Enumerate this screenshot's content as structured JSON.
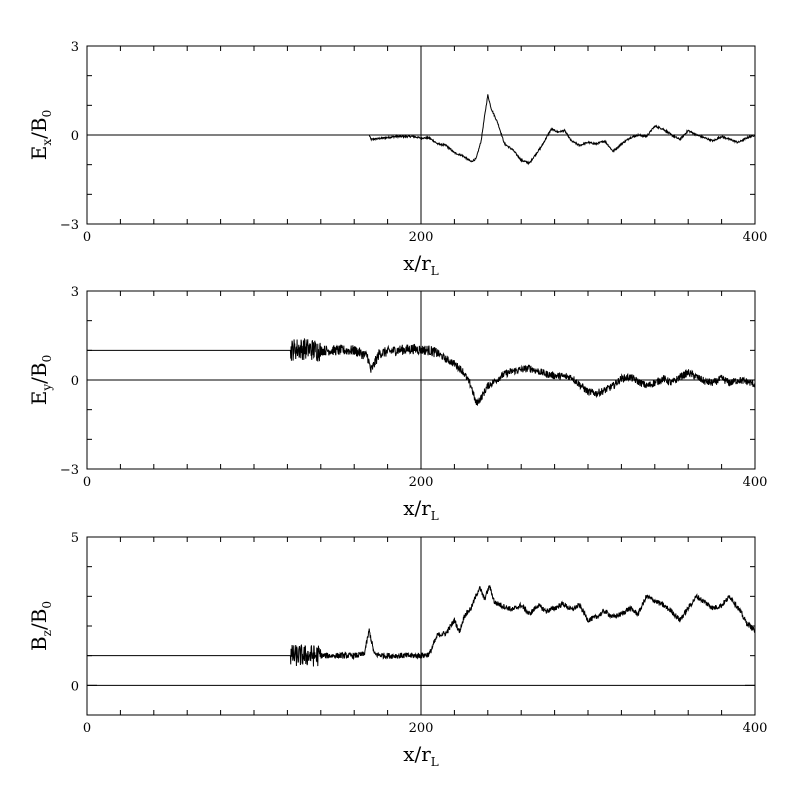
{
  "chart_data": [
    {
      "type": "line",
      "title": "",
      "ylabel": {
        "main": "E",
        "sub": "x",
        "tail": "/B",
        "tail_sub": "0"
      },
      "xlabel": {
        "main": "x/r",
        "sub": "L"
      },
      "xlim": [
        0,
        400
      ],
      "ylim": [
        -3,
        3
      ],
      "xticks": [
        0,
        200,
        400
      ],
      "yticks": [
        -3,
        0,
        3
      ],
      "x_minor_step": 20,
      "y_minor_step": 1,
      "reference_lines": {
        "vertical_x": 200,
        "horizontal_y": 0
      },
      "series": [
        {
          "x": [
            169,
            170,
            175,
            185,
            195,
            200,
            205,
            210,
            215,
            220,
            225,
            230,
            233,
            236,
            238,
            240,
            242,
            246,
            250,
            255,
            260,
            265,
            268,
            272,
            278,
            282,
            286,
            290,
            295,
            300,
            305,
            310,
            315,
            320,
            325,
            330,
            335,
            340,
            345,
            350,
            355,
            360,
            365,
            370,
            375,
            380,
            385,
            390,
            395,
            400
          ],
          "y": [
            0.0,
            -0.15,
            -0.12,
            -0.05,
            -0.05,
            -0.1,
            -0.1,
            -0.3,
            -0.35,
            -0.6,
            -0.7,
            -0.9,
            -0.8,
            -0.2,
            0.6,
            1.35,
            0.9,
            0.4,
            -0.3,
            -0.5,
            -0.85,
            -0.95,
            -0.7,
            -0.4,
            0.2,
            0.1,
            0.15,
            -0.2,
            -0.35,
            -0.25,
            -0.3,
            -0.2,
            -0.55,
            -0.3,
            -0.1,
            0.0,
            -0.05,
            0.3,
            0.2,
            0.0,
            -0.15,
            0.15,
            0.0,
            -0.1,
            -0.2,
            -0.05,
            -0.15,
            -0.25,
            -0.1,
            0.0
          ]
        }
      ]
    },
    {
      "type": "line",
      "title": "",
      "ylabel": {
        "main": "E",
        "sub": "y",
        "tail": "/B",
        "tail_sub": "0"
      },
      "xlabel": {
        "main": "x/r",
        "sub": "L"
      },
      "xlim": [
        0,
        400
      ],
      "ylim": [
        -3,
        3
      ],
      "xticks": [
        0,
        200,
        400
      ],
      "yticks": [
        -3,
        0,
        3
      ],
      "x_minor_step": 20,
      "y_minor_step": 1,
      "reference_lines": {
        "vertical_x": 200,
        "horizontal_y": 0
      },
      "series": [
        {
          "x": [
            0,
            122,
            125,
            130,
            140,
            150,
            160,
            168,
            170,
            175,
            185,
            195,
            205,
            210,
            215,
            220,
            225,
            230,
            233,
            236,
            240,
            245,
            250,
            255,
            260,
            265,
            270,
            275,
            280,
            290,
            300,
            305,
            310,
            315,
            320,
            325,
            330,
            335,
            340,
            345,
            350,
            355,
            360,
            365,
            370,
            375,
            380,
            385,
            390,
            395,
            400
          ],
          "y": [
            1.0,
            1.0,
            1.05,
            1.05,
            1.0,
            1.0,
            1.0,
            0.8,
            0.3,
            0.9,
            1.0,
            1.05,
            1.0,
            0.9,
            0.7,
            0.55,
            0.3,
            -0.2,
            -0.8,
            -0.6,
            -0.2,
            0.0,
            0.2,
            0.3,
            0.35,
            0.4,
            0.3,
            0.2,
            0.15,
            0.1,
            -0.4,
            -0.45,
            -0.35,
            -0.2,
            0.05,
            0.1,
            -0.05,
            -0.2,
            -0.1,
            0.05,
            -0.1,
            0.1,
            0.25,
            0.1,
            -0.05,
            -0.1,
            0.05,
            -0.1,
            0.0,
            -0.05,
            -0.15
          ]
        }
      ]
    },
    {
      "type": "line",
      "title": "",
      "ylabel": {
        "main": "B",
        "sub": "z",
        "tail": "/B",
        "tail_sub": "0"
      },
      "xlabel": {
        "main": "x/r",
        "sub": "L"
      },
      "xlim": [
        0,
        400
      ],
      "ylim": [
        -1,
        5
      ],
      "xticks": [
        0,
        200,
        400
      ],
      "yticks": [
        0,
        5
      ],
      "x_minor_step": 20,
      "y_minor_step": 1,
      "reference_lines": {
        "vertical_x": 200,
        "horizontal_y": 0
      },
      "series": [
        {
          "x": [
            0,
            122,
            125,
            130,
            140,
            150,
            160,
            166,
            169,
            172,
            178,
            185,
            195,
            200,
            205,
            210,
            215,
            220,
            223,
            226,
            230,
            235,
            238,
            241,
            244,
            250,
            255,
            260,
            265,
            270,
            275,
            280,
            285,
            290,
            295,
            300,
            305,
            310,
            315,
            320,
            325,
            330,
            335,
            340,
            345,
            350,
            355,
            360,
            365,
            370,
            375,
            380,
            385,
            390,
            395,
            400
          ],
          "y": [
            1.0,
            1.0,
            1.0,
            1.0,
            1.0,
            1.0,
            1.0,
            1.05,
            1.85,
            1.05,
            1.0,
            1.0,
            1.0,
            1.0,
            1.05,
            1.7,
            1.75,
            2.2,
            1.8,
            2.35,
            2.6,
            3.3,
            2.9,
            3.35,
            2.8,
            2.65,
            2.55,
            2.7,
            2.4,
            2.7,
            2.5,
            2.6,
            2.75,
            2.55,
            2.7,
            2.2,
            2.3,
            2.5,
            2.3,
            2.4,
            2.6,
            2.4,
            3.0,
            2.85,
            2.7,
            2.5,
            2.2,
            2.6,
            3.0,
            2.8,
            2.6,
            2.7,
            3.0,
            2.6,
            2.1,
            1.85
          ]
        }
      ]
    }
  ]
}
